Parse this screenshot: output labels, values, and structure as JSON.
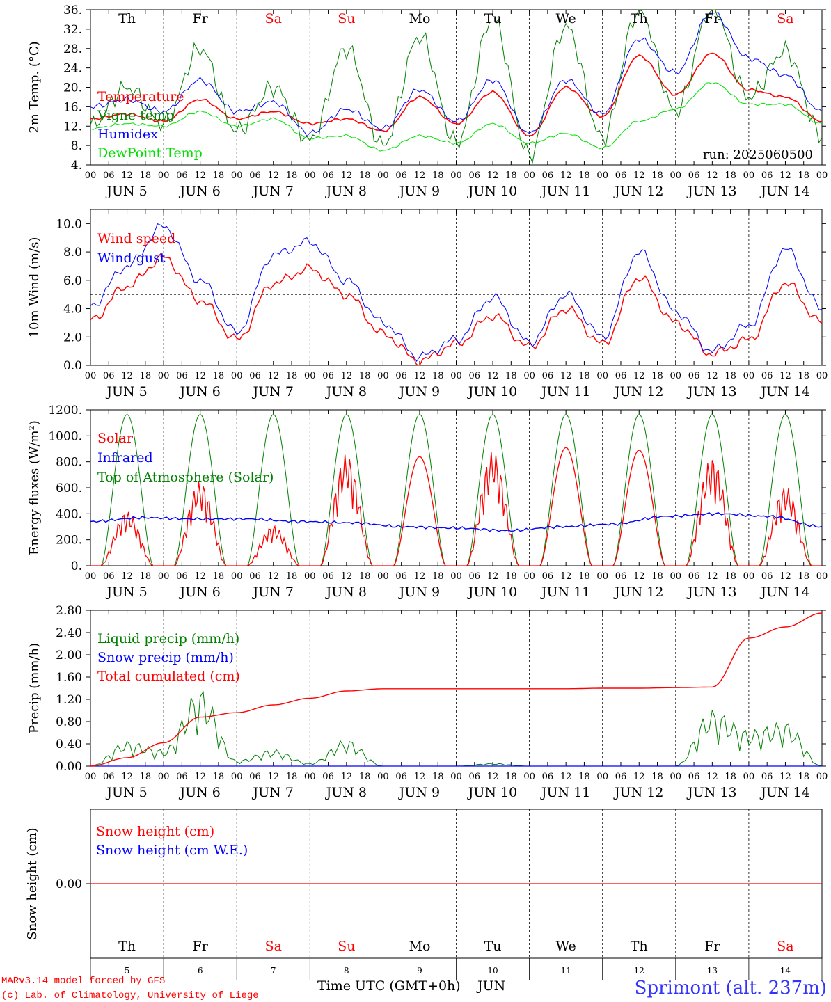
{
  "footer": {
    "credit_line1": "MARv3.14 model forced by GFS",
    "credit_line2": "(c) Lab. of Climatology, University of Liege",
    "time_label": "Time UTC (GMT+0h)",
    "month_label": "JUN",
    "station": "Sprimont (alt. 237m)"
  },
  "colors": {
    "red": "#ff0000",
    "blue": "#0000ff",
    "green": "#008000",
    "light_green": "#00e000",
    "weekend": "#ff0000",
    "weekday": "#000000"
  },
  "chart_data": [
    {
      "type": "line",
      "ylabel": "2m Temp. (°C)",
      "ylim": [
        4,
        36
      ],
      "yticks": [
        "4.",
        "8.",
        "12.",
        "16.",
        "20.",
        "24.",
        "28.",
        "32.",
        "36."
      ],
      "run_label": "run: 2025060500",
      "x": [
        "Jun 5 00",
        "Jun 5 12",
        "Jun 6 00",
        "Jun 6 12",
        "Jun 7 00",
        "Jun 7 12",
        "Jun 8 00",
        "Jun 8 12",
        "Jun 9 00",
        "Jun 9 12",
        "Jun 10 00",
        "Jun 10 12",
        "Jun 11 00",
        "Jun 11 12",
        "Jun 12 00",
        "Jun 12 12",
        "Jun 13 00",
        "Jun 13 12",
        "Jun 14 00",
        "Jun 14 12",
        "Jun 15 00"
      ],
      "series": [
        {
          "name": "Temperature",
          "color": "#ff0000",
          "values": [
            13.5,
            14.5,
            13.0,
            17.5,
            13.5,
            15.0,
            12.5,
            13.5,
            11.0,
            18.0,
            12.5,
            19.0,
            10.0,
            20.0,
            14.0,
            26.5,
            18.5,
            27.0,
            19.5,
            18.0,
            13.0
          ]
        },
        {
          "name": "Vigne temp",
          "color": "#008000",
          "values": [
            12.0,
            20.0,
            12.5,
            28.0,
            11.0,
            20.0,
            9.0,
            28.0,
            8.0,
            30.5,
            8.5,
            34.0,
            6.0,
            32.5,
            9.5,
            36.0,
            15.0,
            36.5,
            18.0,
            27.5,
            10.0
          ]
        },
        {
          "name": "Humidex",
          "color": "#0000ff",
          "values": [
            16.0,
            17.5,
            15.0,
            21.5,
            15.0,
            17.0,
            10.5,
            15.5,
            11.5,
            19.5,
            13.0,
            21.5,
            10.5,
            21.5,
            14.5,
            30.0,
            23.0,
            35.5,
            26.0,
            22.5,
            15.0
          ]
        },
        {
          "name": "DewPoint Temp",
          "color": "#00e000",
          "values": [
            11.5,
            12.5,
            12.0,
            15.0,
            12.0,
            13.5,
            9.5,
            10.0,
            7.0,
            10.0,
            8.5,
            12.5,
            8.5,
            10.5,
            7.5,
            13.0,
            15.5,
            21.0,
            16.5,
            16.5,
            12.5
          ]
        }
      ]
    },
    {
      "type": "line",
      "ylabel": "10m Wind (m/s)",
      "ylim": [
        0,
        11
      ],
      "yticks": [
        "0.0",
        "2.0",
        "4.0",
        "6.0",
        "8.0",
        "10.0"
      ],
      "reference_line": 5,
      "x": [
        "Jun 5 00",
        "Jun 5 12",
        "Jun 6 00",
        "Jun 6 12",
        "Jun 7 00",
        "Jun 7 12",
        "Jun 8 00",
        "Jun 8 12",
        "Jun 9 00",
        "Jun 9 12",
        "Jun 10 00",
        "Jun 10 12",
        "Jun 11 00",
        "Jun 11 12",
        "Jun 12 00",
        "Jun 12 12",
        "Jun 13 00",
        "Jun 13 12",
        "Jun 14 00",
        "Jun 14 12",
        "Jun 15 00"
      ],
      "series": [
        {
          "name": "Wind speed",
          "color": "#ff0000",
          "values": [
            3.2,
            5.6,
            7.6,
            4.6,
            1.8,
            5.8,
            6.8,
            5.0,
            2.2,
            0.3,
            1.5,
            3.5,
            1.3,
            4.0,
            1.5,
            6.2,
            3.0,
            0.8,
            1.8,
            5.8,
            3.0
          ]
        },
        {
          "name": "Wind gust",
          "color": "#0000ff",
          "values": [
            4.2,
            7.0,
            9.8,
            6.0,
            2.3,
            7.8,
            8.7,
            6.0,
            3.0,
            0.6,
            1.8,
            4.8,
            1.6,
            5.0,
            2.0,
            8.0,
            3.8,
            1.0,
            2.8,
            8.2,
            4.0
          ]
        }
      ]
    },
    {
      "type": "line",
      "ylabel": "Energy fluxes (W/m²)",
      "ylim": [
        0,
        1200
      ],
      "yticks": [
        "0.",
        "200.",
        "400.",
        "600.",
        "800.",
        "1000.",
        "1200."
      ],
      "x_note": "daily cycles; day-time peaks near 12 UTC",
      "series": [
        {
          "name": "Solar",
          "color": "#ff0000",
          "daily_peak_values": [
            420,
            650,
            310,
            860,
            840,
            880,
            910,
            890,
            840,
            610
          ]
        },
        {
          "name": "Infrared",
          "color": "#0000ff",
          "values": [
            340,
            370,
            360,
            360,
            340,
            330,
            300,
            290,
            270,
            300,
            320,
            380,
            400,
            380,
            300
          ]
        },
        {
          "name": "Top of Atmosphere (Solar)",
          "color": "#008000",
          "daily_peak_values": [
            1165,
            1165,
            1165,
            1165,
            1165,
            1165,
            1165,
            1165,
            1165,
            1165
          ]
        }
      ]
    },
    {
      "type": "line",
      "ylabel": "Precip (mm/h)",
      "ylim": [
        0,
        2.8
      ],
      "yticks": [
        "0.00",
        "0.40",
        "0.80",
        "1.20",
        "1.60",
        "2.00",
        "2.40",
        "2.80"
      ],
      "x": [
        "Jun 5 00",
        "Jun 5 12",
        "Jun 6 00",
        "Jun 6 12",
        "Jun 7 00",
        "Jun 7 12",
        "Jun 8 00",
        "Jun 8 12",
        "Jun 9 00",
        "Jun 9 12",
        "Jun 10 00",
        "Jun 10 12",
        "Jun 11 00",
        "Jun 11 12",
        "Jun 12 00",
        "Jun 12 12",
        "Jun 13 00",
        "Jun 13 12",
        "Jun 14 00",
        "Jun 14 12",
        "Jun 15 00"
      ],
      "series": [
        {
          "name": "Liquid precip (mm/h)",
          "color": "#008000",
          "values": [
            0.0,
            0.45,
            0.3,
            1.4,
            0.1,
            0.3,
            0.05,
            0.48,
            0.0,
            0.0,
            0.0,
            0.05,
            0.0,
            0.0,
            0.0,
            0.0,
            0.0,
            1.02,
            0.65,
            0.8,
            0.0
          ]
        },
        {
          "name": "Snow precip (mm/h)",
          "color": "#0000ff",
          "values": [
            0,
            0,
            0,
            0,
            0,
            0,
            0,
            0,
            0,
            0,
            0,
            0,
            0,
            0,
            0,
            0,
            0,
            0,
            0,
            0,
            0
          ]
        },
        {
          "name": "Total cumulated (cm)",
          "color": "#ff0000",
          "values": [
            0.0,
            0.15,
            0.42,
            0.88,
            0.96,
            1.1,
            1.22,
            1.35,
            1.39,
            1.39,
            1.39,
            1.39,
            1.39,
            1.39,
            1.4,
            1.4,
            1.41,
            1.42,
            2.3,
            2.5,
            2.75
          ]
        }
      ]
    },
    {
      "type": "line",
      "ylabel": "Snow height (cm)",
      "yticks": [
        "0.00"
      ],
      "series": [
        {
          "name": "Snow height (cm)",
          "color": "#ff0000",
          "values": [
            0.0,
            0.0
          ]
        },
        {
          "name": "Snow height (cm W.E.)",
          "color": "#0000ff",
          "values": [
            0.0,
            0.0
          ]
        }
      ]
    }
  ],
  "axis": {
    "hour_ticks": [
      "00",
      "06",
      "12",
      "18"
    ],
    "last_tick": "00",
    "date_labels": [
      "JUN  5",
      "JUN  6",
      "JUN  7",
      "JUN  8",
      "JUN  9",
      "JUN 10",
      "JUN 11",
      "JUN 12",
      "JUN 13",
      "JUN 14"
    ],
    "weekdays": [
      "Th",
      "Fr",
      "Sa",
      "Su",
      "Mo",
      "Tu",
      "We",
      "Th",
      "Fr",
      "Sa"
    ],
    "weekend_flags": [
      false,
      false,
      true,
      true,
      false,
      false,
      false,
      false,
      false,
      true
    ],
    "day_numbers": [
      "5",
      "6",
      "7",
      "8",
      "9",
      "10",
      "11",
      "12",
      "13",
      "14"
    ]
  }
}
